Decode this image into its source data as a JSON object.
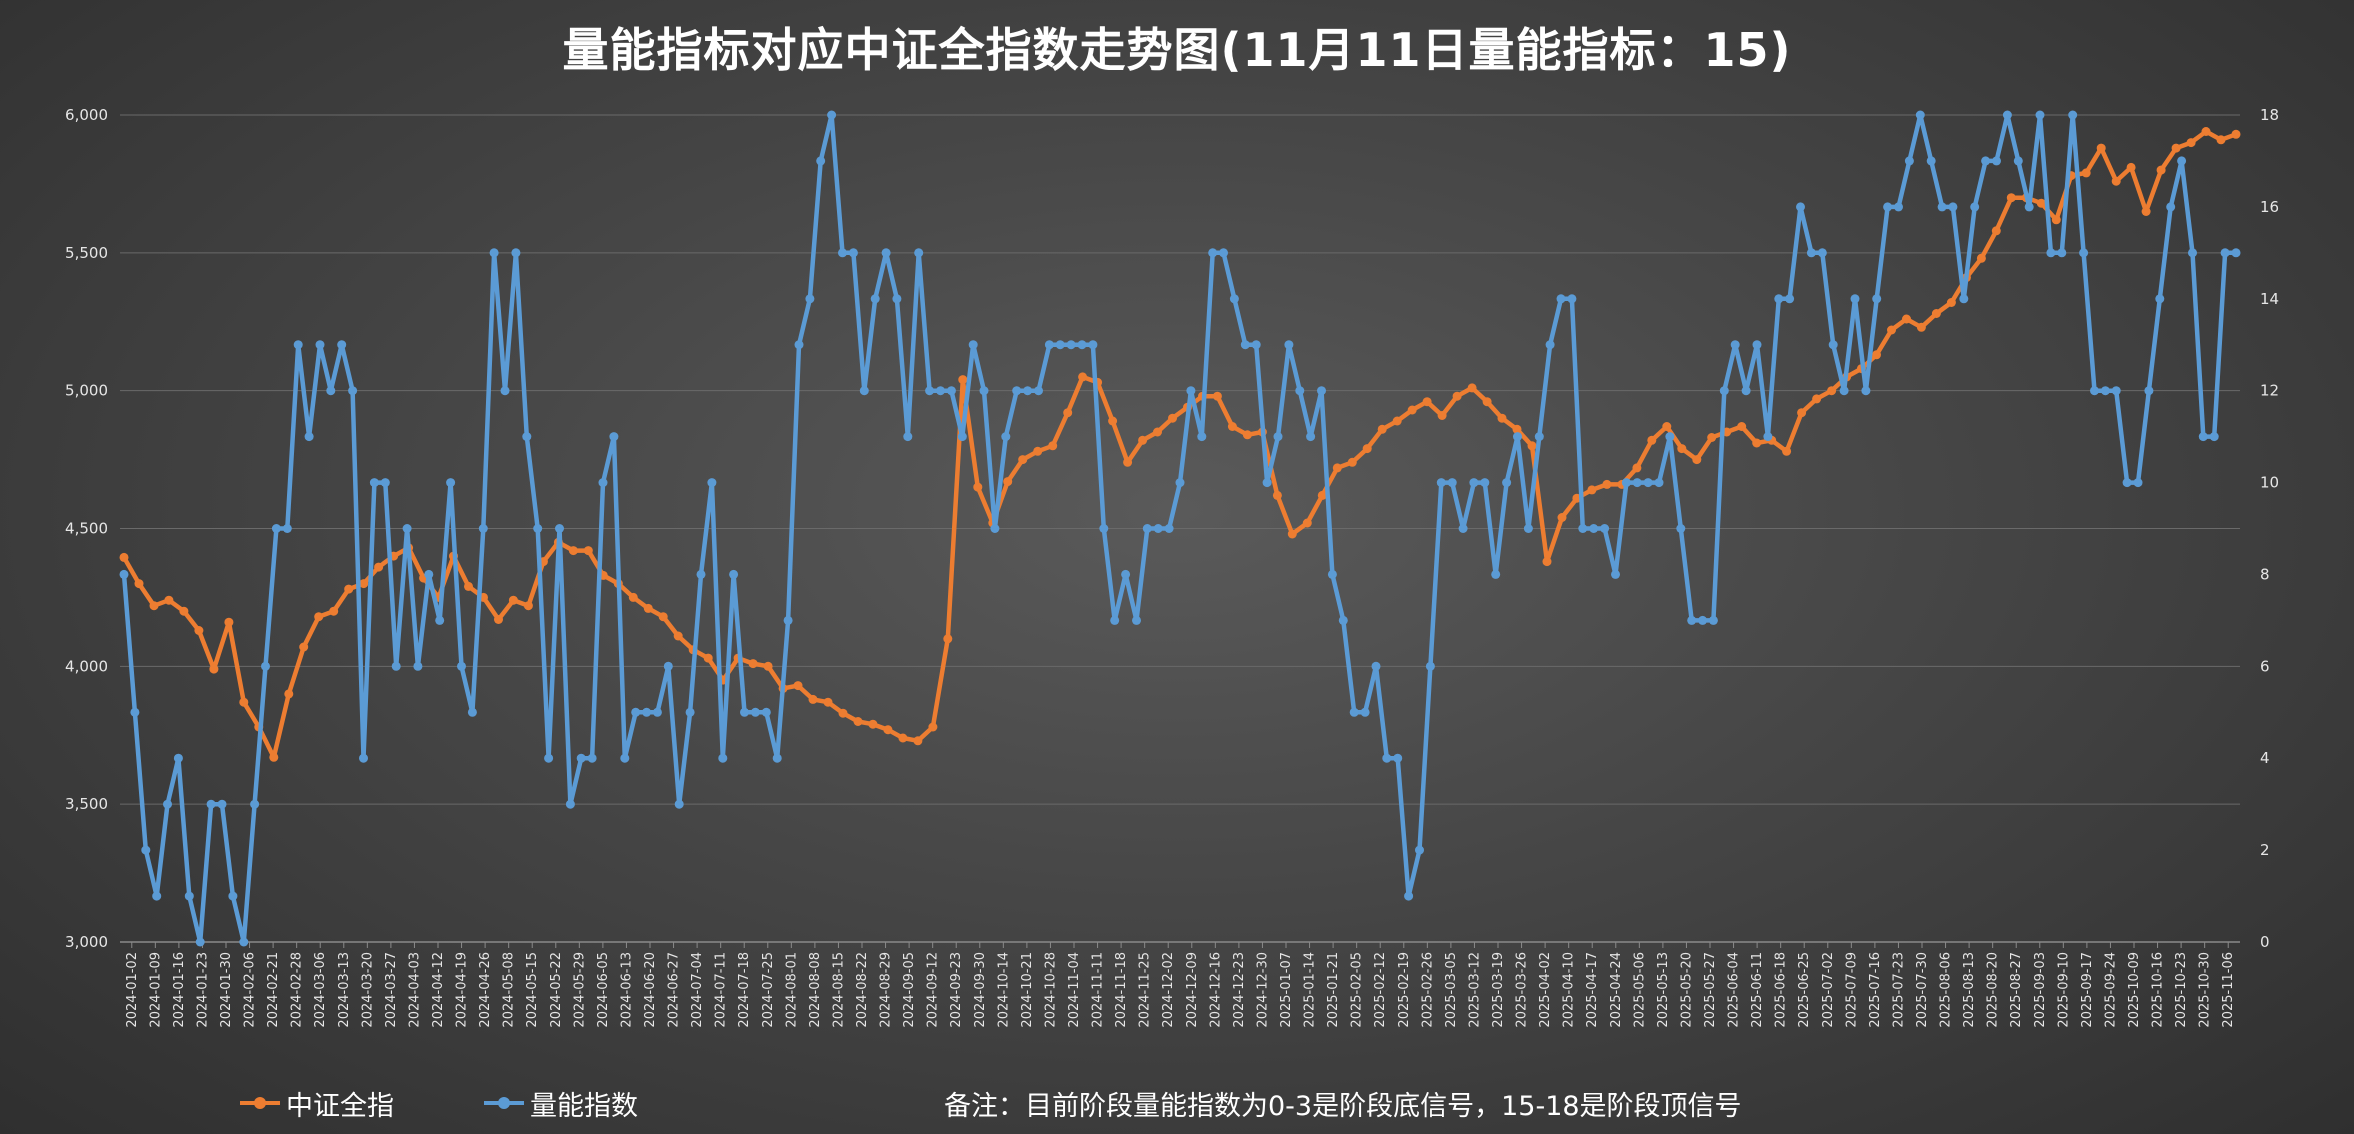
{
  "title": "量能指标对应中证全指数走势图(11月11日量能指标：15)",
  "note": "备注：目前阶段量能指数为0-3是阶段底信号，15-18是阶段顶信号",
  "colors": {
    "index": "#ED7D31",
    "volume": "#5B9BD5",
    "grid": "#6a6a6a",
    "text": "#e6e6e6"
  },
  "legend": [
    {
      "label": "中证全指",
      "color": "#ED7D31"
    },
    {
      "label": "量能指数",
      "color": "#5B9BD5"
    }
  ],
  "chart_data": {
    "type": "line",
    "title": "量能指标对应中证全指数走势图(11月11日量能指标：15)",
    "grid": true,
    "legend_position": "bottom-left",
    "y_left": {
      "ticks": [
        "3,000",
        "3,500",
        "4,000",
        "4,500",
        "5,000",
        "5,500",
        "6,000"
      ],
      "range": [
        3000,
        6000
      ]
    },
    "y_right": {
      "ticks": [
        "0",
        "2",
        "4",
        "6",
        "8",
        "10",
        "12",
        "14",
        "16",
        "18"
      ],
      "range": [
        0,
        18
      ]
    },
    "x_tick_labels": [
      "2024-01-02",
      "2024-01-09",
      "2024-01-16",
      "2024-01-23",
      "2024-01-30",
      "2024-02-06",
      "2024-02-21",
      "2024-02-28",
      "2024-03-06",
      "2024-03-13",
      "2024-03-20",
      "2024-03-27",
      "2024-04-03",
      "2024-04-12",
      "2024-04-19",
      "2024-04-26",
      "2024-05-08",
      "2024-05-15",
      "2024-05-22",
      "2024-05-29",
      "2024-06-05",
      "2024-06-13",
      "2024-06-20",
      "2024-06-27",
      "2024-07-04",
      "2024-07-11",
      "2024-07-18",
      "2024-07-25",
      "2024-08-01",
      "2024-08-08",
      "2024-08-15",
      "2024-08-22",
      "2024-08-29",
      "2024-09-05",
      "2024-09-12",
      "2024-09-23",
      "2024-09-30",
      "2024-10-14",
      "2024-10-21",
      "2024-10-28",
      "2024-11-04",
      "2024-11-11",
      "2024-11-18",
      "2024-11-25",
      "2024-12-02",
      "2024-12-09",
      "2024-12-16",
      "2024-12-23",
      "2024-12-30",
      "2025-01-07",
      "2025-01-14",
      "2025-01-21",
      "2025-02-05",
      "2025-02-12",
      "2025-02-19",
      "2025-02-26",
      "2025-03-05",
      "2025-03-12",
      "2025-03-19",
      "2025-03-26",
      "2025-04-02",
      "2025-04-10",
      "2025-04-17",
      "2025-04-24",
      "2025-05-06",
      "2025-05-13",
      "2025-05-20",
      "2025-05-27",
      "2025-06-04",
      "2025-06-11",
      "2025-06-18",
      "2025-06-25",
      "2025-07-02",
      "2025-07-09",
      "2025-07-16",
      "2025-07-23",
      "2025-07-30",
      "2025-08-06",
      "2025-08-13",
      "2025-08-20",
      "2025-08-27",
      "2025-09-03",
      "2025-09-10",
      "2025-09-17",
      "2025-09-24",
      "2025-10-09",
      "2025-10-16",
      "2025-10-23",
      "2025-10-30",
      "2025-11-06"
    ],
    "series": [
      {
        "name": "中证全指",
        "axis": "left",
        "values": [
          4395,
          4300,
          4220,
          4240,
          4200,
          4130,
          3990,
          4160,
          3870,
          3780,
          3670,
          3900,
          4070,
          4180,
          4200,
          4280,
          4300,
          4360,
          4400,
          4430,
          4320,
          4250,
          4400,
          4290,
          4250,
          4170,
          4240,
          4220,
          4380,
          4450,
          4420,
          4420,
          4330,
          4300,
          4250,
          4210,
          4180,
          4110,
          4060,
          4030,
          3950,
          4030,
          4010,
          4000,
          3920,
          3930,
          3880,
          3870,
          3830,
          3800,
          3790,
          3770,
          3740,
          3730,
          3780,
          4100,
          5040,
          4650,
          4520,
          4670,
          4750,
          4780,
          4800,
          4920,
          5050,
          5030,
          4890,
          4740,
          4820,
          4850,
          4900,
          4940,
          4980,
          4980,
          4870,
          4840,
          4850,
          4620,
          4480,
          4520,
          4620,
          4720,
          4740,
          4790,
          4860,
          4890,
          4930,
          4960,
          4910,
          4980,
          5010,
          4960,
          4900,
          4860,
          4800,
          4380,
          4540,
          4610,
          4640,
          4660,
          4660,
          4720,
          4820,
          4870,
          4790,
          4750,
          4830,
          4850,
          4870,
          4810,
          4820,
          4780,
          4920,
          4970,
          5000,
          5050,
          5080,
          5130,
          5220,
          5260,
          5230,
          5280,
          5320,
          5410,
          5480,
          5580,
          5700,
          5700,
          5680,
          5620,
          5780,
          5790,
          5880,
          5760,
          5810,
          5650,
          5800,
          5880,
          5900,
          5940,
          5910,
          5930
        ]
      },
      {
        "name": "量能指数",
        "axis": "right",
        "values": [
          8,
          5,
          2,
          1,
          3,
          4,
          1,
          0,
          3,
          3,
          1,
          0,
          3,
          6,
          9,
          9,
          13,
          11,
          13,
          12,
          13,
          12,
          4,
          10,
          10,
          6,
          9,
          6,
          8,
          7,
          10,
          6,
          5,
          9,
          15,
          12,
          15,
          11,
          9,
          4,
          9,
          3,
          4,
          4,
          10,
          11,
          4,
          5,
          5,
          5,
          6,
          3,
          5,
          8,
          10,
          4,
          8,
          5,
          5,
          5,
          4,
          7,
          13,
          14,
          17,
          18,
          15,
          15,
          12,
          14,
          15,
          14,
          11,
          15,
          12,
          12,
          12,
          11,
          13,
          12,
          9,
          11,
          12,
          12,
          12,
          13,
          13,
          13,
          13,
          13,
          9,
          7,
          8,
          7,
          9,
          9,
          9,
          10,
          12,
          11,
          15,
          15,
          14,
          13,
          13,
          10,
          11,
          13,
          12,
          11,
          12,
          8,
          7,
          5,
          5,
          6,
          4,
          4,
          1,
          2,
          6,
          10,
          10,
          9,
          10,
          10,
          8,
          10,
          11,
          9,
          11,
          13,
          14,
          14,
          9,
          9,
          9,
          8,
          10,
          10,
          10,
          10,
          11,
          9,
          7,
          7,
          7,
          12,
          13,
          12,
          13,
          11,
          14,
          14,
          16,
          15,
          15,
          13,
          12,
          14,
          12,
          14,
          16,
          16,
          17,
          18,
          17,
          16,
          16,
          14,
          16,
          17,
          17,
          18,
          17,
          16,
          18,
          15,
          15,
          18,
          15,
          12,
          12,
          12,
          10,
          10,
          12,
          14,
          16,
          17,
          15,
          11,
          11,
          15,
          15
        ]
      }
    ]
  }
}
